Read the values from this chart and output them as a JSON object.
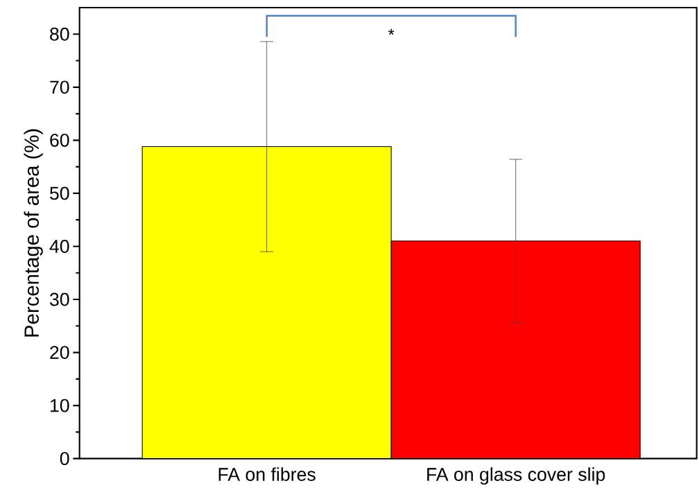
{
  "chart_data": {
    "type": "bar",
    "ylabel": "Percentage of area (%)",
    "categories": [
      "FA on fibres",
      "FA on glass cover slip"
    ],
    "values": [
      58.8,
      41.0
    ],
    "colors": [
      "#ffff00",
      "#ff0000"
    ],
    "errors": [
      19.8,
      15.4
    ],
    "ylim": [
      0,
      85
    ],
    "yticks": [
      0,
      10,
      20,
      30,
      40,
      50,
      60,
      70,
      80
    ],
    "grid": false,
    "annotations": [
      "*"
    ]
  }
}
